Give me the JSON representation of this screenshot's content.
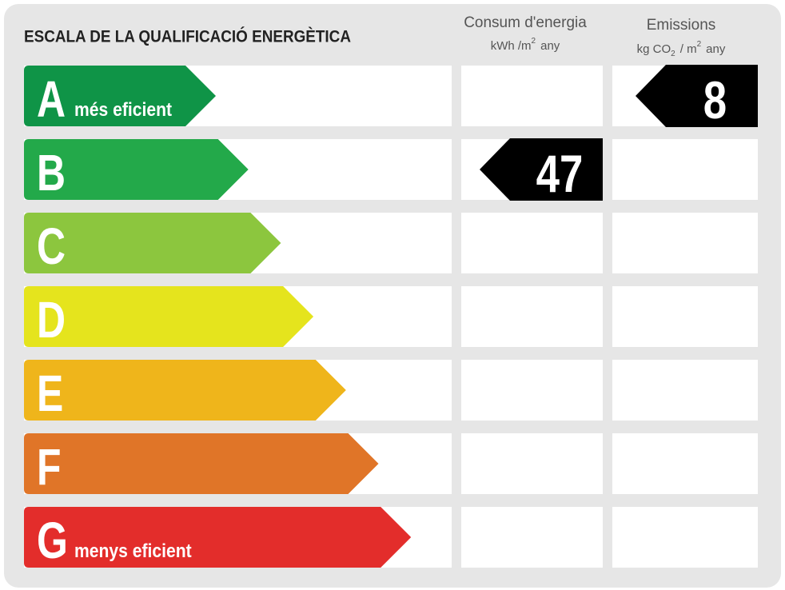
{
  "header": {
    "title": "ESCALA DE LA QUALIFICACIÓ ENERGÈTICA"
  },
  "columns": {
    "consumption": {
      "title": "Consum d'energia",
      "unit": "kWh /m",
      "unit_sup": "2",
      "unit_end": "any"
    },
    "emissions": {
      "title": "Emissions",
      "unit": "kg CO",
      "unit_sub": "2",
      "unit_mid": "/ m",
      "unit_sup": "2",
      "unit_end": "any"
    }
  },
  "rows": [
    {
      "letter": "A",
      "label": "més eficient",
      "color": "#0f9447"
    },
    {
      "letter": "B",
      "color": "#23a94a"
    },
    {
      "letter": "C",
      "color": "#8cc63e"
    },
    {
      "letter": "D",
      "color": "#e5e41d"
    },
    {
      "letter": "E",
      "color": "#efb51b"
    },
    {
      "letter": "F",
      "color": "#e07528"
    },
    {
      "letter": "G",
      "label": "menys eficient",
      "color": "#e32d2b"
    }
  ],
  "consumption": {
    "rating": "B",
    "value": 47
  },
  "emissions": {
    "rating": "A",
    "value": 8
  }
}
